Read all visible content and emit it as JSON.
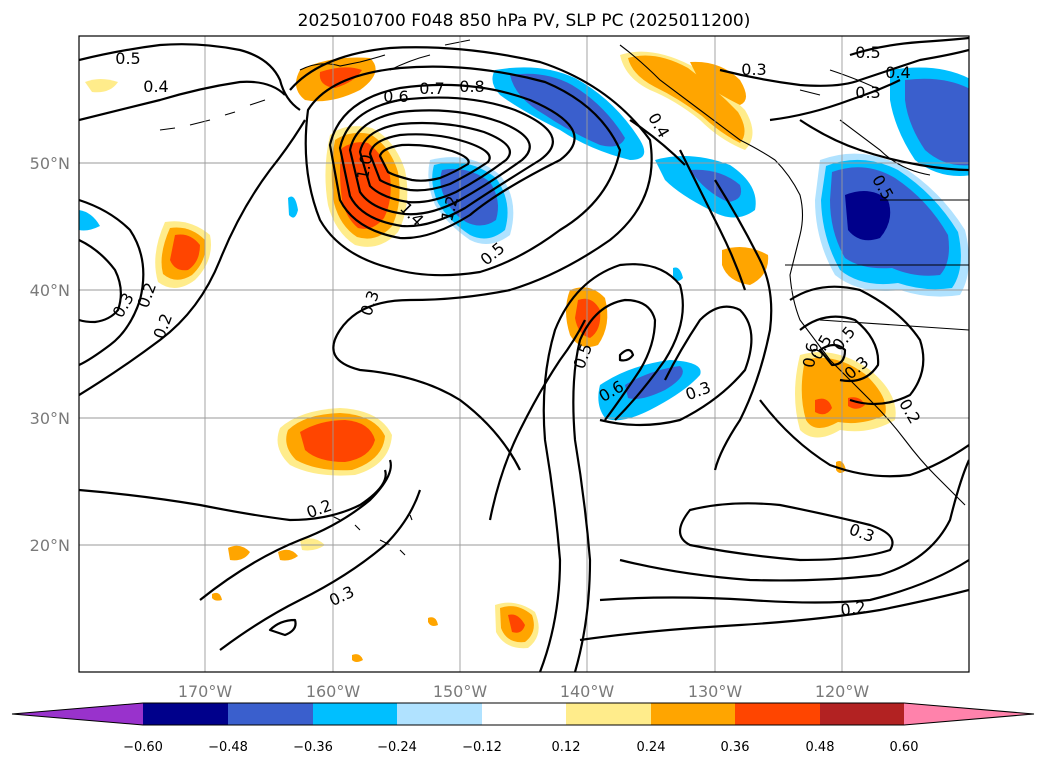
{
  "title": "2025010700 F048 850 hPa PV, SLP PC (2025011200)",
  "axes": {
    "lon_ticks": [
      "170°W",
      "160°W",
      "150°W",
      "140°W",
      "130°W",
      "120°W"
    ],
    "lat_ticks": [
      "50°N",
      "40°N",
      "30°N",
      "20°N"
    ]
  },
  "colorbar": {
    "ticks": [
      "−0.60",
      "−0.48",
      "−0.36",
      "−0.24",
      "−0.12",
      "0.12",
      "0.24",
      "0.36",
      "0.48",
      "0.60"
    ],
    "colors": [
      "#9932cc",
      "#00008b",
      "#3a5fcd",
      "#00bfff",
      "#b0e2ff",
      "#ffffff",
      "#ffec8b",
      "#ffa500",
      "#ff4500",
      "#b22222",
      "#ff82ab"
    ]
  },
  "contour_labels": [
    "0.5",
    "0.4",
    "0.6",
    "0.7",
    "0.8",
    "1.0",
    "1.4",
    "1.2",
    "0.5",
    "0.3",
    "0.3",
    "0.2",
    "0.2",
    "0.3",
    "0.5",
    "0.6",
    "0.3",
    "0.2",
    "0.3",
    "0.4",
    "0.5",
    "0.3",
    "0.4",
    "0.3",
    "0.5",
    "0.2",
    "0.6",
    "0.5",
    "0.3",
    "0.5",
    "0.2"
  ]
}
